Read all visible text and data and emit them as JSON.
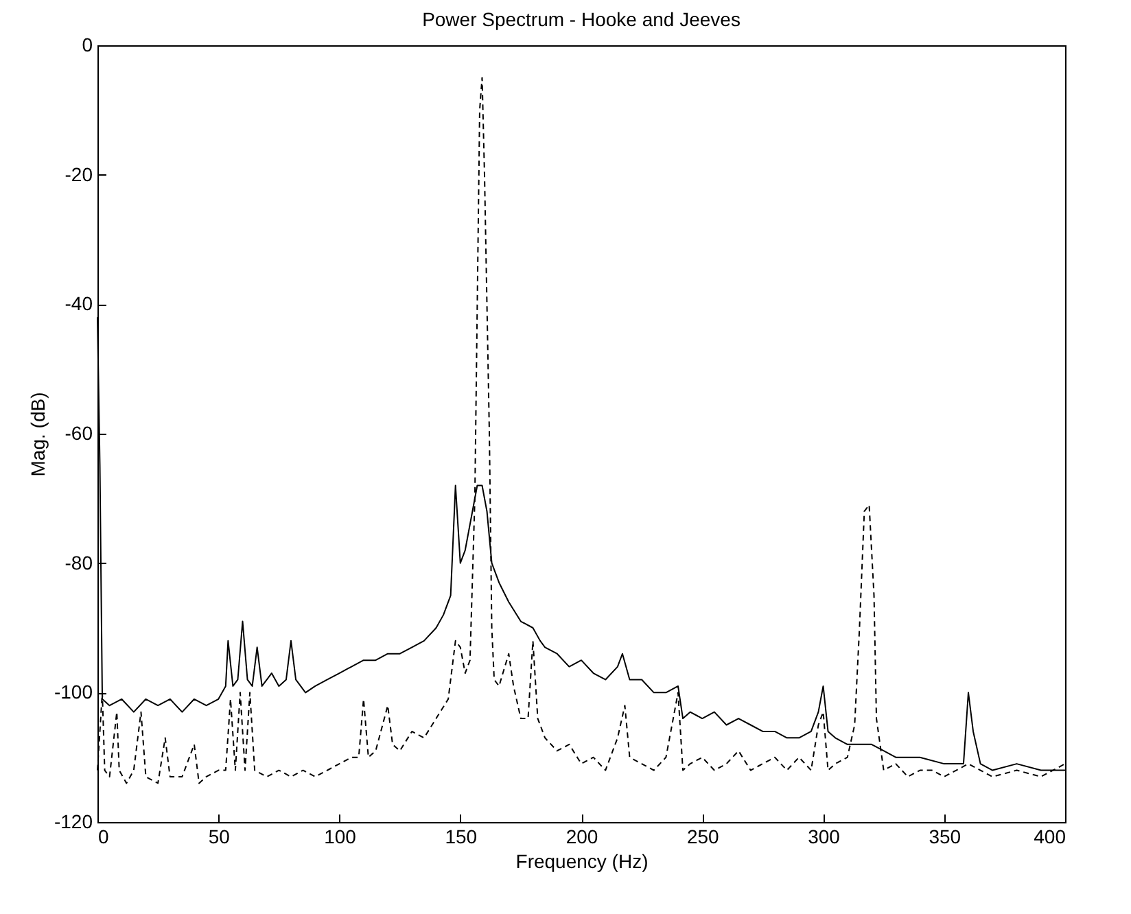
{
  "chart_data": {
    "type": "line",
    "title": "Power Spectrum - Hooke and Jeeves",
    "xlabel": "Frequency (Hz)",
    "ylabel": "Mag. (dB)",
    "xlim": [
      0,
      400
    ],
    "xticks": [
      0,
      50,
      100,
      150,
      200,
      250,
      300,
      350,
      400
    ],
    "ylim": [
      -120,
      0
    ],
    "yticks": [
      -120,
      -100,
      -80,
      -60,
      -40,
      -20,
      0
    ],
    "grid": false,
    "marker": "none",
    "series": [
      {
        "color": "#000000",
        "line_style": "solid",
        "x": [
          0,
          1,
          2,
          5,
          10,
          15,
          20,
          25,
          30,
          35,
          40,
          45,
          50,
          53,
          54,
          56,
          58,
          60,
          62,
          64,
          66,
          68,
          72,
          75,
          78,
          80,
          82,
          86,
          90,
          95,
          100,
          105,
          110,
          115,
          120,
          125,
          130,
          135,
          140,
          143,
          146,
          148,
          150,
          152,
          155,
          157,
          159,
          161,
          163,
          166,
          170,
          175,
          180,
          183,
          185,
          190,
          195,
          200,
          205,
          210,
          215,
          217,
          220,
          225,
          230,
          235,
          240,
          242,
          245,
          250,
          255,
          260,
          265,
          270,
          275,
          280,
          285,
          290,
          295,
          298,
          300,
          302,
          305,
          310,
          315,
          320,
          325,
          330,
          340,
          350,
          355,
          358,
          360,
          362,
          365,
          370,
          380,
          390,
          400
        ],
        "values": [
          -42,
          -65,
          -101,
          -102,
          -101,
          -103,
          -101,
          -102,
          -101,
          -103,
          -101,
          -102,
          -101,
          -99,
          -92,
          -99,
          -98,
          -89,
          -98,
          -99,
          -93,
          -99,
          -97,
          -99,
          -98,
          -92,
          -98,
          -100,
          -99,
          -98,
          -97,
          -96,
          -95,
          -95,
          -94,
          -94,
          -93,
          -92,
          -90,
          -88,
          -85,
          -68,
          -80,
          -78,
          -72,
          -68,
          -68,
          -72,
          -80,
          -83,
          -86,
          -89,
          -90,
          -92,
          -93,
          -94,
          -96,
          -95,
          -97,
          -98,
          -96,
          -94,
          -98,
          -98,
          -100,
          -100,
          -99,
          -104,
          -103,
          -104,
          -103,
          -105,
          -104,
          -105,
          -106,
          -106,
          -107,
          -107,
          -106,
          -103,
          -99,
          -106,
          -107,
          -108,
          -108,
          -108,
          -109,
          -110,
          -110,
          -111,
          -111,
          -111,
          -100,
          -106,
          -111,
          -112,
          -111,
          -112,
          -112
        ]
      },
      {
        "color": "#000000",
        "line_style": "dashed",
        "x": [
          0,
          2,
          3,
          5,
          8,
          9,
          12,
          15,
          18,
          20,
          25,
          28,
          30,
          35,
          40,
          42,
          45,
          50,
          53,
          55,
          57,
          59,
          61,
          63,
          65,
          70,
          75,
          80,
          85,
          90,
          95,
          100,
          105,
          108,
          110,
          112,
          115,
          120,
          122,
          125,
          130,
          135,
          140,
          145,
          148,
          150,
          152,
          154,
          156,
          157,
          158,
          159,
          160,
          161,
          162,
          163,
          164,
          166,
          170,
          172,
          175,
          178,
          180,
          182,
          185,
          190,
          195,
          200,
          205,
          210,
          215,
          218,
          220,
          225,
          230,
          235,
          238,
          240,
          242,
          245,
          250,
          255,
          260,
          265,
          270,
          275,
          280,
          285,
          290,
          295,
          298,
          300,
          302,
          305,
          310,
          313,
          315,
          317,
          319,
          321,
          322,
          325,
          330,
          335,
          340,
          345,
          350,
          355,
          360,
          365,
          370,
          380,
          390,
          400
        ],
        "values": [
          -112,
          -100,
          -112,
          -113,
          -103,
          -112,
          -114,
          -112,
          -103,
          -113,
          -114,
          -107,
          -113,
          -113,
          -108,
          -114,
          -113,
          -112,
          -112,
          -101,
          -112,
          -100,
          -112,
          -100,
          -112,
          -113,
          -112,
          -113,
          -112,
          -113,
          -112,
          -111,
          -110,
          -110,
          -101,
          -110,
          -109,
          -102,
          -108,
          -109,
          -106,
          -107,
          -104,
          -101,
          -92,
          -93,
          -97,
          -95,
          -70,
          -40,
          -10,
          -5,
          -20,
          -40,
          -60,
          -90,
          -98,
          -99,
          -94,
          -99,
          -104,
          -104,
          -92,
          -104,
          -107,
          -109,
          -108,
          -111,
          -110,
          -112,
          -107,
          -102,
          -110,
          -111,
          -112,
          -110,
          -104,
          -100,
          -112,
          -111,
          -110,
          -112,
          -111,
          -109,
          -112,
          -111,
          -110,
          -112,
          -110,
          -112,
          -105,
          -103,
          -112,
          -111,
          -110,
          -105,
          -90,
          -72,
          -71,
          -85,
          -104,
          -112,
          -111,
          -113,
          -112,
          -112,
          -113,
          -112,
          -111,
          -112,
          -113,
          -112,
          -113,
          -111
        ]
      }
    ]
  }
}
